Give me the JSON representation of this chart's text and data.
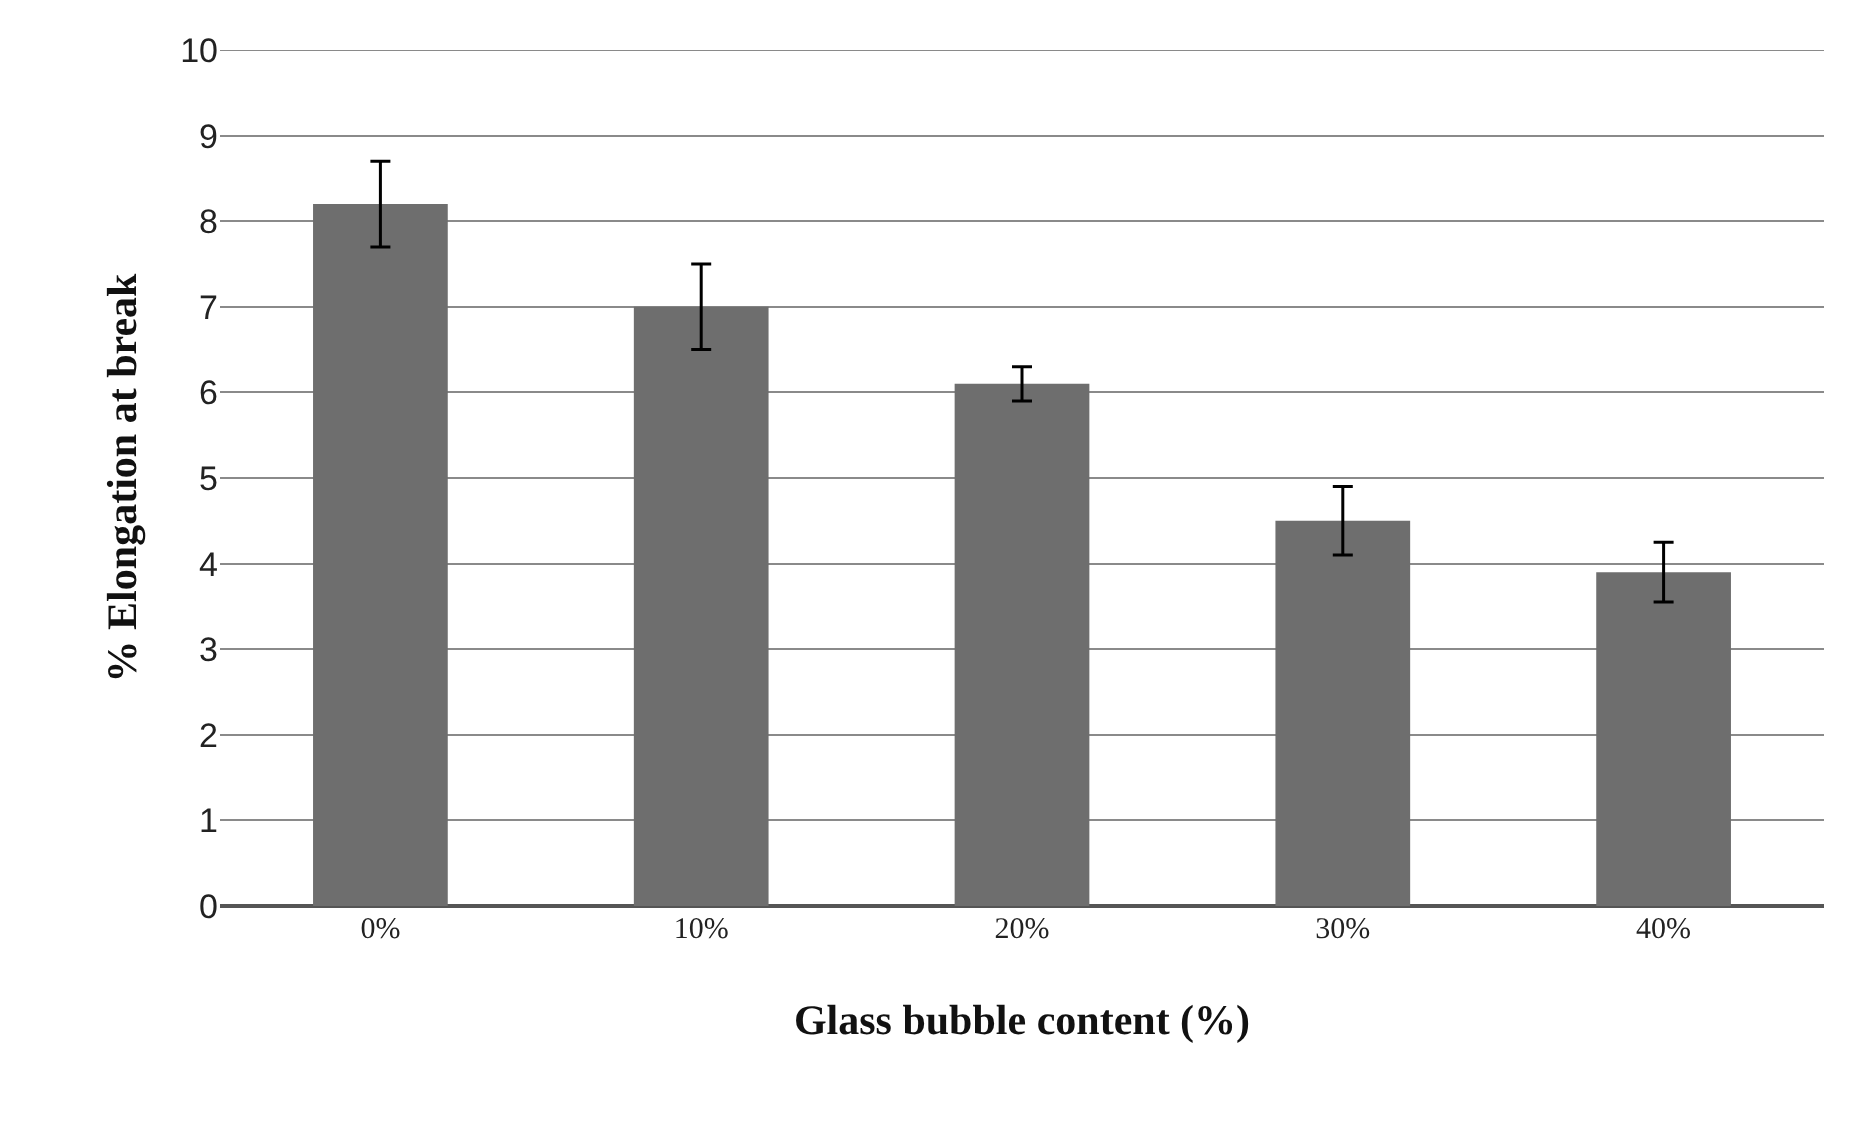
{
  "chart_data": {
    "type": "bar",
    "xlabel": "Glass bubble content (%)",
    "ylabel": "% Elongation at break",
    "categories": [
      "0%",
      "10%",
      "20%",
      "30%",
      "40%"
    ],
    "values": [
      8.2,
      7.0,
      6.1,
      4.5,
      3.9
    ],
    "errors": [
      0.5,
      0.5,
      0.2,
      0.4,
      0.35
    ],
    "color": "#6e6e6e",
    "ylim": [
      0,
      10
    ],
    "yticks": [
      0,
      1,
      2,
      3,
      4,
      5,
      6,
      7,
      8,
      9,
      10
    ],
    "grid": "y"
  }
}
